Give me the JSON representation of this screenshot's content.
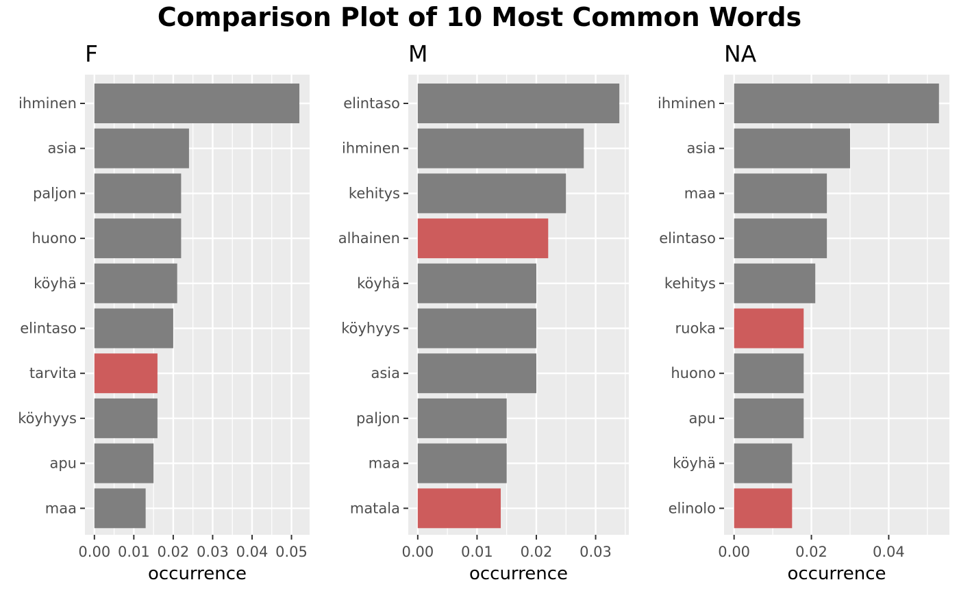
{
  "chart_data": {
    "type": "bar",
    "orientation": "horizontal",
    "title": "Comparison Plot of 10 Most Common Words",
    "xlabel": "occurrence",
    "grid": true,
    "colors": {
      "panel": "#ebebeb",
      "grid": "#ffffff",
      "bar": "#7f7f7f",
      "highlight": "#cd5c5c"
    },
    "panels": [
      {
        "facet": "F",
        "xlim": [
          -0.0024,
          0.0546
        ],
        "ticks": [
          0.0,
          0.01,
          0.02,
          0.03,
          0.04,
          0.05
        ],
        "tick_labels": [
          "0.00",
          "0.01",
          "0.02",
          "0.03",
          "0.04",
          "0.05"
        ],
        "categories": [
          "ihminen",
          "asia",
          "paljon",
          "huono",
          "köyhä",
          "elintaso",
          "tarvita",
          "köyhyys",
          "apu",
          "maa"
        ],
        "values": [
          0.052,
          0.024,
          0.022,
          0.022,
          0.021,
          0.02,
          0.016,
          0.016,
          0.015,
          0.013
        ],
        "highlight": [
          "tarvita"
        ]
      },
      {
        "facet": "M",
        "xlim": [
          -0.0016,
          0.0356
        ],
        "ticks": [
          0.0,
          0.01,
          0.02,
          0.03
        ],
        "tick_labels": [
          "0.00",
          "0.01",
          "0.02",
          "0.03"
        ],
        "categories": [
          "elintaso",
          "ihminen",
          "kehitys",
          "alhainen",
          "köyhä",
          "köyhyys",
          "asia",
          "paljon",
          "maa",
          "matala"
        ],
        "values": [
          0.034,
          0.028,
          0.025,
          0.022,
          0.02,
          0.02,
          0.02,
          0.015,
          0.015,
          0.014
        ],
        "highlight": [
          "alhainen",
          "matala"
        ]
      },
      {
        "facet": "NA",
        "xlim": [
          -0.0026,
          0.0557
        ],
        "ticks": [
          0.0,
          0.02,
          0.04
        ],
        "tick_labels": [
          "0.00",
          "0.02",
          "0.04"
        ],
        "categories": [
          "ihminen",
          "asia",
          "maa",
          "elintaso",
          "kehitys",
          "ruoka",
          "huono",
          "apu",
          "köyhä",
          "elinolo"
        ],
        "values": [
          0.053,
          0.03,
          0.024,
          0.024,
          0.021,
          0.018,
          0.018,
          0.018,
          0.015,
          0.015
        ],
        "highlight": [
          "ruoka",
          "elinolo"
        ]
      }
    ]
  }
}
